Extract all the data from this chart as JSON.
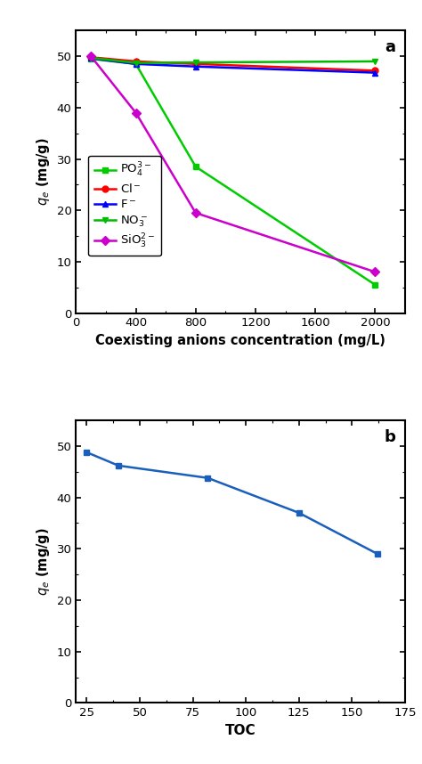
{
  "plot_a": {
    "title_label": "a",
    "xlabel": "Coexisting anions concentration (mg/L)",
    "ylabel": "$q_e$ (mg/g)",
    "xlim": [
      0,
      2200
    ],
    "ylim": [
      0,
      55
    ],
    "xticks": [
      0,
      400,
      800,
      1200,
      1600,
      2000
    ],
    "yticks": [
      0,
      10,
      20,
      30,
      40,
      50
    ],
    "series": [
      {
        "label": "$\\mathrm{PO_4^{3-}}$",
        "color": "#00cc00",
        "marker": "s",
        "x": [
          100,
          400,
          800,
          2000
        ],
        "y": [
          49.5,
          48.5,
          28.5,
          5.5
        ]
      },
      {
        "label": "$\\mathrm{Cl^-}$",
        "color": "#ff0000",
        "marker": "o",
        "x": [
          100,
          400,
          800,
          2000
        ],
        "y": [
          49.8,
          49.0,
          48.5,
          47.2
        ]
      },
      {
        "label": "$\\mathrm{F^-}$",
        "color": "#0000ff",
        "marker": "^",
        "x": [
          100,
          400,
          800,
          2000
        ],
        "y": [
          49.6,
          48.5,
          48.0,
          46.8
        ]
      },
      {
        "label": "$\\mathrm{NO_3^-}$",
        "color": "#00bb00",
        "marker": "v",
        "x": [
          100,
          400,
          800,
          2000
        ],
        "y": [
          49.7,
          48.7,
          48.8,
          49.0
        ]
      },
      {
        "label": "$\\mathrm{SiO_3^{2-}}$",
        "color": "#cc00cc",
        "marker": "D",
        "x": [
          100,
          400,
          800,
          2000
        ],
        "y": [
          50.0,
          39.0,
          19.5,
          8.0
        ]
      }
    ]
  },
  "plot_b": {
    "title_label": "b",
    "xlabel": "TOC",
    "ylabel": "$q_e$ (mg/g)",
    "xlim": [
      20,
      175
    ],
    "ylim": [
      0,
      55
    ],
    "xticks": [
      25,
      50,
      75,
      100,
      125,
      150,
      175
    ],
    "yticks": [
      0,
      10,
      20,
      30,
      40,
      50
    ],
    "series": [
      {
        "label": "TOC",
        "color": "#1a5fbb",
        "marker": "s",
        "x": [
          25,
          40,
          82,
          125,
          162
        ],
        "y": [
          48.8,
          46.2,
          43.8,
          37.0,
          29.0
        ]
      }
    ]
  },
  "fig_width": 4.74,
  "fig_height": 8.58,
  "dpi": 100
}
